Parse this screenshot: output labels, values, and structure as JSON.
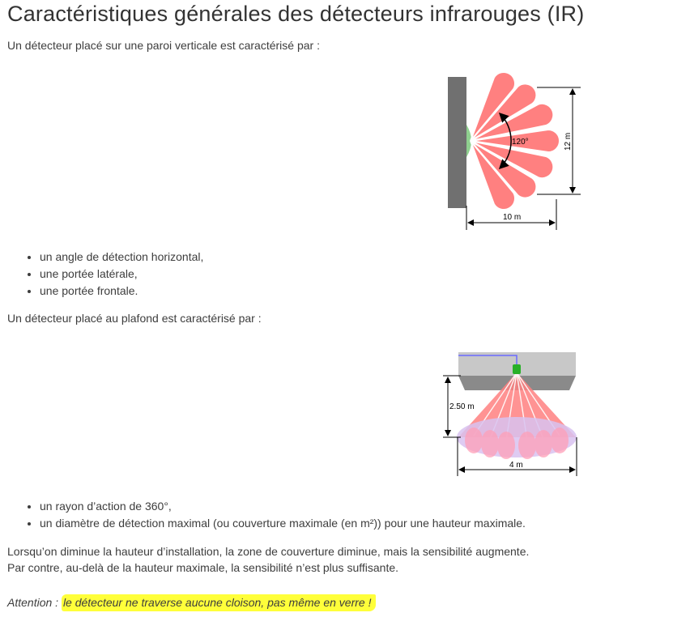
{
  "title": "Caractéristiques générales des détecteurs infrarouges (IR)",
  "wall": {
    "intro": "Un détecteur placé sur une paroi verticale est caractérisé par :",
    "figure": {
      "angle": "120°",
      "height": "12 m",
      "width": "10 m"
    },
    "bullets": [
      "un angle de détection horizontal,",
      "une portée latérale,",
      "une portée frontale."
    ]
  },
  "ceiling": {
    "intro": "Un détecteur placé au plafond est caractérisé par :",
    "figure": {
      "height": "2.50 m",
      "width": "4 m"
    },
    "bullets": [
      "un rayon d’action de 360°,",
      "un diamètre de détection maximal (ou couverture maximale (en m²)) pour une hauteur maximale."
    ]
  },
  "notes": {
    "line1": "Lorsqu’on diminue la hauteur d’installation, la zone de couverture diminue, mais la sensibilité augmente.",
    "line2": "Par contre, au-delà de la hauteur maximale, la sensibilité n’est plus suffisante."
  },
  "attention": {
    "label": "Attention :",
    "text": "le détecteur ne traverse aucune cloison, pas même en verre !"
  },
  "colors": {
    "lobe": "#ff8080",
    "wall": "#707070",
    "sensor": "#8fd08f",
    "highlight": "#ffff3a"
  }
}
